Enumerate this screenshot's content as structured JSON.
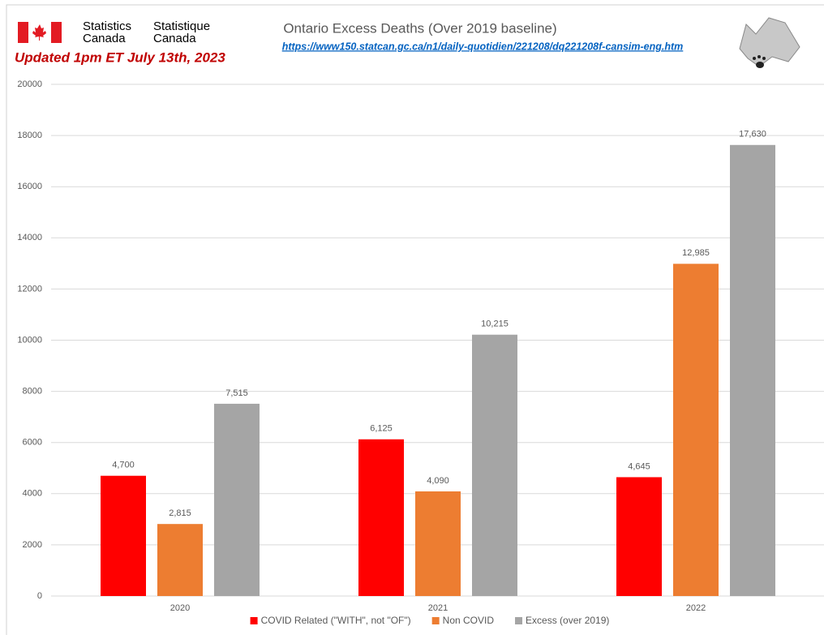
{
  "header": {
    "agency_en": [
      "Statistics",
      "Canada"
    ],
    "agency_fr": [
      "Statistique",
      "Canada"
    ],
    "updated": "Updated 1pm ET July 13th, 2023",
    "source_url": "https://www150.statcan.gc.ca/n1/daily-quotidien/221208/dq221208f-cansim-eng.htm"
  },
  "chart_data": {
    "type": "bar",
    "title": "Ontario Excess Deaths (Over 2019 baseline)",
    "categories": [
      "2020",
      "2021",
      "2022"
    ],
    "series": [
      {
        "name": "COVID Related (\"WITH\", not \"OF\")",
        "color": "#ff0000",
        "values": [
          4700,
          6125,
          4645
        ],
        "value_labels": [
          "4,700",
          "6,125",
          "4,645"
        ]
      },
      {
        "name": "Non COVID",
        "color": "#ed7d31",
        "values": [
          2815,
          4090,
          12985
        ],
        "value_labels": [
          "2,815",
          "4,090",
          "12,985"
        ]
      },
      {
        "name": "Excess (over 2019)",
        "color": "#a5a5a5",
        "values": [
          7515,
          10215,
          17630
        ],
        "value_labels": [
          "7,515",
          "10,215",
          "17,630"
        ]
      }
    ],
    "ylim": [
      0,
      20000
    ],
    "yticks": [
      0,
      2000,
      4000,
      6000,
      8000,
      10000,
      12000,
      14000,
      16000,
      18000,
      20000
    ],
    "grid": true,
    "legend": "bottom"
  }
}
